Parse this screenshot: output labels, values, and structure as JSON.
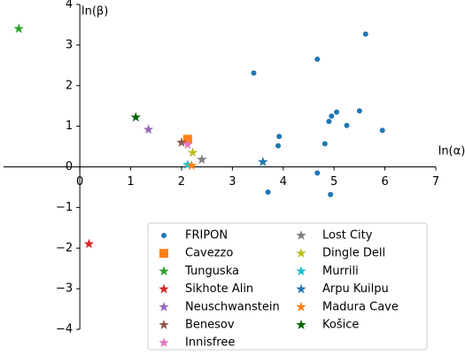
{
  "chart_data": {
    "type": "scatter",
    "xlabel": "ln(α)",
    "ylabel": "ln(β)",
    "xlim": [
      -1.5,
      7
    ],
    "ylim": [
      -4,
      4
    ],
    "xticks": [
      0,
      1,
      2,
      3,
      4,
      5,
      6,
      7
    ],
    "yticks": [
      {
        "value": -4,
        "label": "−4"
      },
      {
        "value": -3,
        "label": "−3"
      },
      {
        "value": -2,
        "label": "−2"
      },
      {
        "value": -1,
        "label": "−1"
      },
      0,
      1,
      2,
      3,
      4
    ],
    "legend": "lower right",
    "series": [
      {
        "name": "FRIPON",
        "color": "#1f77b4",
        "marker": "circle",
        "x": [
          5.62,
          4.67,
          3.42,
          3.92,
          3.9,
          5.05,
          4.95,
          4.9,
          5.5,
          5.25,
          4.82,
          5.95,
          4.67,
          3.7,
          4.93
        ],
        "values": [
          3.27,
          2.65,
          2.31,
          0.75,
          0.52,
          1.35,
          1.25,
          1.12,
          1.38,
          1.02,
          0.57,
          0.9,
          -0.15,
          -0.62,
          -0.68
        ]
      },
      {
        "name": "Cavezzo",
        "color": "#ff7f0e",
        "marker": "square",
        "x": [
          2.12
        ],
        "values": [
          0.68
        ]
      },
      {
        "name": "Tunguska",
        "color": "#2ca02c",
        "marker": "star",
        "x": [
          -1.2
        ],
        "values": [
          3.4
        ]
      },
      {
        "name": "Sikhote Alin",
        "color": "#d62728",
        "marker": "star",
        "x": [
          0.18
        ],
        "values": [
          -1.9
        ]
      },
      {
        "name": "Neuschwanstein",
        "color": "#9467bd",
        "marker": "star",
        "x": [
          1.35
        ],
        "values": [
          0.92
        ]
      },
      {
        "name": "Benesov",
        "color": "#8c564b",
        "marker": "star",
        "x": [
          2.0
        ],
        "values": [
          0.6
        ]
      },
      {
        "name": "Innisfree",
        "color": "#e377c2",
        "marker": "star",
        "x": [
          2.12
        ],
        "values": [
          0.55
        ]
      },
      {
        "name": "Lost City",
        "color": "#7f7f7f",
        "marker": "star",
        "x": [
          2.4
        ],
        "values": [
          0.18
        ]
      },
      {
        "name": "Dingle Dell",
        "color": "#bcbd22",
        "marker": "star",
        "x": [
          2.22
        ],
        "values": [
          0.35
        ]
      },
      {
        "name": "Murrili",
        "color": "#17becf",
        "marker": "star",
        "x": [
          2.12
        ],
        "values": [
          0.05
        ]
      },
      {
        "name": "Arpu Kuilpu",
        "color": "#1f77b4",
        "marker": "star",
        "x": [
          3.6
        ],
        "values": [
          0.12
        ]
      },
      {
        "name": "Madura Cave",
        "color": "#ff7f0e",
        "marker": "star",
        "x": [
          2.2
        ],
        "values": [
          0.03
        ]
      },
      {
        "name": "Košice",
        "color": "#006400",
        "marker": "star",
        "x": [
          1.1
        ],
        "values": [
          1.22
        ]
      }
    ]
  }
}
